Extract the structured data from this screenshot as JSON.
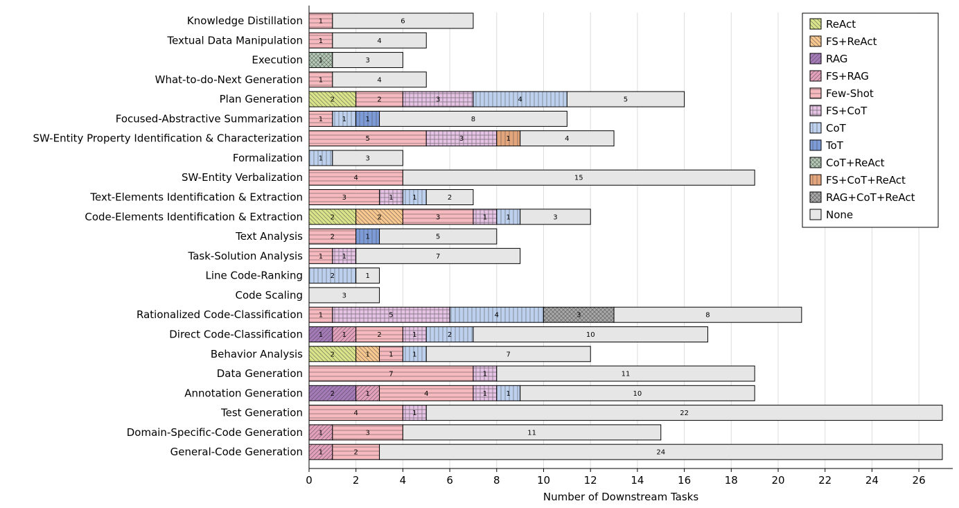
{
  "chart_data": {
    "type": "bar",
    "orientation": "horizontal",
    "stacked": true,
    "xlabel": "Number of Downstream Tasks",
    "ylabel": "",
    "xlim": [
      0,
      27
    ],
    "xticks": [
      0,
      2,
      4,
      6,
      8,
      10,
      12,
      14,
      16,
      18,
      20,
      22,
      24,
      26
    ],
    "grid": "vertical",
    "legend_position": "top-right",
    "categories": [
      "Knowledge Distillation",
      "Textual Data Manipulation",
      "Execution",
      "What-to-do-Next Generation",
      "Plan Generation",
      "Focused-Abstractive Summarization",
      "SW-Entity Property Identification & Characterization",
      "Formalization",
      "SW-Entity Verbalization",
      "Text-Elements Identification & Extraction",
      "Code-Elements Identification & Extraction",
      "Text Analysis",
      "Task-Solution Analysis",
      "Line Code-Ranking",
      "Code Scaling",
      "Rationalized Code-Classification",
      "Direct Code-Classification",
      "Behavior Analysis",
      "Data Generation",
      "Annotation Generation",
      "Test Generation",
      "Domain-Specific-Code Generation",
      "General-Code Generation"
    ],
    "series": [
      {
        "name": "ReAct",
        "color": "#d9e48a",
        "pattern": "diag-back",
        "values": [
          0,
          0,
          0,
          0,
          2,
          0,
          0,
          0,
          0,
          0,
          2,
          0,
          0,
          0,
          0,
          0,
          0,
          2,
          0,
          0,
          0,
          0,
          0
        ]
      },
      {
        "name": "FS+ReAct",
        "color": "#f9c890",
        "pattern": "diag-back",
        "values": [
          0,
          0,
          0,
          0,
          0,
          0,
          0,
          0,
          0,
          0,
          2,
          0,
          0,
          0,
          0,
          0,
          0,
          1,
          0,
          0,
          0,
          0,
          0
        ]
      },
      {
        "name": "RAG",
        "color": "#a57ab8",
        "pattern": "diag-fwd",
        "values": [
          0,
          0,
          0,
          0,
          0,
          0,
          0,
          0,
          0,
          0,
          0,
          0,
          0,
          0,
          0,
          0,
          1,
          0,
          0,
          2,
          0,
          0,
          0
        ]
      },
      {
        "name": "FS+RAG",
        "color": "#e3a0bb",
        "pattern": "diag-fwd",
        "values": [
          0,
          0,
          0,
          0,
          0,
          0,
          0,
          0,
          0,
          0,
          0,
          0,
          0,
          0,
          0,
          0,
          1,
          0,
          0,
          1,
          0,
          1,
          1
        ]
      },
      {
        "name": "Few-Shot",
        "color": "#f6b9bd",
        "pattern": "horiz",
        "values": [
          1,
          1,
          0,
          1,
          2,
          1,
          5,
          0,
          4,
          3,
          3,
          2,
          1,
          0,
          0,
          1,
          2,
          1,
          7,
          4,
          4,
          3,
          2
        ]
      },
      {
        "name": "FS+CoT",
        "color": "#e6c2e4",
        "pattern": "grid",
        "values": [
          0,
          0,
          0,
          0,
          3,
          0,
          3,
          0,
          0,
          1,
          1,
          0,
          1,
          0,
          0,
          5,
          1,
          0,
          1,
          1,
          1,
          0,
          0
        ]
      },
      {
        "name": "CoT",
        "color": "#bdd0ee",
        "pattern": "vert",
        "values": [
          0,
          0,
          0,
          0,
          4,
          1,
          0,
          1,
          0,
          1,
          1,
          0,
          0,
          2,
          0,
          4,
          2,
          1,
          0,
          1,
          0,
          0,
          0
        ]
      },
      {
        "name": "ToT",
        "color": "#7d9bd6",
        "pattern": "vert",
        "values": [
          0,
          0,
          0,
          0,
          0,
          1,
          0,
          0,
          0,
          0,
          0,
          1,
          0,
          0,
          0,
          0,
          0,
          0,
          0,
          0,
          0,
          0,
          0
        ]
      },
      {
        "name": "CoT+ReAct",
        "color": "#b6cbb7",
        "pattern": "cross",
        "values": [
          0,
          0,
          1,
          0,
          0,
          0,
          0,
          0,
          0,
          0,
          0,
          0,
          0,
          0,
          0,
          0,
          0,
          0,
          0,
          0,
          0,
          0,
          0
        ]
      },
      {
        "name": "FS+CoT+ReAct",
        "color": "#e3a57b",
        "pattern": "vert",
        "values": [
          0,
          0,
          0,
          0,
          0,
          0,
          1,
          0,
          0,
          0,
          0,
          0,
          0,
          0,
          0,
          0,
          0,
          0,
          0,
          0,
          0,
          0,
          0
        ]
      },
      {
        "name": "RAG+CoT+ReAct",
        "color": "#a9a9a9",
        "pattern": "cross",
        "values": [
          0,
          0,
          0,
          0,
          0,
          0,
          0,
          0,
          0,
          0,
          0,
          0,
          0,
          0,
          0,
          3,
          0,
          0,
          0,
          0,
          0,
          0,
          0
        ]
      },
      {
        "name": "None",
        "color": "#e6e6e6",
        "pattern": "none",
        "values": [
          6,
          4,
          3,
          4,
          5,
          8,
          4,
          3,
          15,
          2,
          3,
          5,
          7,
          1,
          3,
          8,
          10,
          7,
          11,
          10,
          22,
          11,
          24
        ]
      }
    ]
  }
}
